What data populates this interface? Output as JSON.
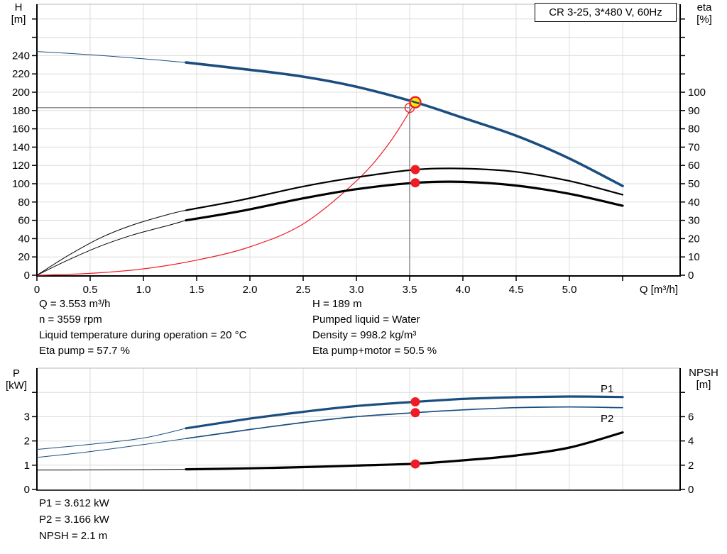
{
  "title_box": "CR 3-25, 3*480 V, 60Hz",
  "axis_labels": {
    "h": "H",
    "h_unit": "[m]",
    "eta": "eta",
    "eta_unit": "[%]",
    "p": "P",
    "p_unit": "[kW]",
    "npsh": "NPSH",
    "npsh_unit": "[m]",
    "q": "Q [m³/h]"
  },
  "annotations": {
    "left": [
      "Q = 3.553 m³/h",
      "n = 3559 rpm",
      "Liquid temperature during operation = 20 °C",
      "Eta pump = 57.7 %"
    ],
    "right": [
      "H = 189 m",
      "Pumped liquid = Water",
      "Density = 998.2 kg/m³",
      "Eta pump+motor = 50.5 %"
    ],
    "bottom": [
      "P1 = 3.612 kW",
      "P2 = 3.166 kW",
      "NPSH = 2.1 m"
    ]
  },
  "colors": {
    "curve_blue": "#1b4e7f",
    "label_blue": "#2a63ad",
    "red": "#ee1c25",
    "yellow": "#ffe600",
    "black": "#000000",
    "grid": "#dcdcdc",
    "border_gray": "#b9b9b9",
    "crosshair": "#555555"
  },
  "chart_data": [
    {
      "type": "line",
      "id": "hq-chart",
      "x_axis": {
        "label": "Q [m³/h]",
        "tick_values": [
          0,
          0.5,
          1,
          1.5,
          2,
          2.5,
          3,
          3.5,
          4,
          4.5,
          5,
          5.5
        ],
        "tick_labels": [
          "0",
          "0.5",
          "1.0",
          "1.5",
          "2.0",
          "2.5",
          "3.0",
          "3.5",
          "4.0",
          "4.5",
          "5.0",
          ""
        ]
      },
      "left_axis": {
        "label": "H [m]",
        "tick_values": [
          0,
          20,
          40,
          60,
          80,
          100,
          120,
          140,
          160,
          180,
          200,
          220,
          240,
          260,
          280
        ],
        "tick_labels": [
          "0",
          "20",
          "40",
          "60",
          "80",
          "100",
          "120",
          "140",
          "160",
          "180",
          "200",
          "220",
          "240",
          "",
          ""
        ]
      },
      "right_axis": {
        "label": "eta [%]",
        "tick_values": [
          0,
          10,
          20,
          30,
          40,
          50,
          60,
          70,
          80,
          90,
          100,
          110,
          120,
          130,
          140
        ],
        "tick_labels": [
          "0",
          "10",
          "20",
          "30",
          "40",
          "50",
          "60",
          "70",
          "80",
          "90",
          "100",
          "",
          "",
          "",
          ""
        ]
      },
      "series": [
        {
          "name": "system-curve",
          "axis": "H",
          "color_key": "red",
          "split_q": null,
          "widths": [
            1.2,
            1.2
          ],
          "points": [
            [
              0,
              0
            ],
            [
              0.5,
              2
            ],
            [
              1.0,
              7
            ],
            [
              1.5,
              16.5
            ],
            [
              2.0,
              31
            ],
            [
              2.5,
              56
            ],
            [
              3.0,
              103
            ],
            [
              3.3,
              143
            ],
            [
              3.553,
              189
            ]
          ]
        },
        {
          "name": "eta-pump",
          "axis": "eta",
          "color_key": "black",
          "split_q": 1.4,
          "widths": [
            1,
            2.2
          ],
          "points": [
            [
              0,
              0
            ],
            [
              0.3,
              11
            ],
            [
              0.6,
              20.5
            ],
            [
              0.9,
              27.5
            ],
            [
              1.25,
              33.5
            ],
            [
              1.4,
              35.5
            ],
            [
              1.91,
              41
            ],
            [
              2.5,
              48.5
            ],
            [
              3.0,
              53.5
            ],
            [
              3.553,
              57.7
            ],
            [
              4.0,
              58.3
            ],
            [
              4.5,
              56.5
            ],
            [
              5.0,
              51.5
            ],
            [
              5.5,
              44
            ]
          ]
        },
        {
          "name": "eta-pump-motor",
          "axis": "eta",
          "color_key": "black",
          "split_q": 1.4,
          "widths": [
            1,
            3.2
          ],
          "points": [
            [
              0,
              0
            ],
            [
              0.3,
              8.5
            ],
            [
              0.6,
              16
            ],
            [
              0.9,
              22
            ],
            [
              1.25,
              27.5
            ],
            [
              1.4,
              30
            ],
            [
              1.91,
              35
            ],
            [
              2.5,
              42
            ],
            [
              3.0,
              47
            ],
            [
              3.553,
              50.5
            ],
            [
              4.0,
              51
            ],
            [
              4.5,
              49
            ],
            [
              5.0,
              44.5
            ],
            [
              5.5,
              38
            ]
          ]
        },
        {
          "name": "head-curve",
          "axis": "H",
          "color_key": "curve_blue",
          "split_q": 1.4,
          "widths": [
            1,
            3.6
          ],
          "points": [
            [
              0,
              244.5
            ],
            [
              0.5,
              241
            ],
            [
              1.0,
              236.5
            ],
            [
              1.4,
              232.5
            ],
            [
              2.0,
              224.5
            ],
            [
              2.5,
              217
            ],
            [
              3.0,
              206
            ],
            [
              3.553,
              189
            ],
            [
              4.0,
              172
            ],
            [
              4.5,
              152.5
            ],
            [
              5.0,
              127.5
            ],
            [
              5.5,
              97.5
            ]
          ]
        }
      ],
      "crosshair": {
        "q": 3.5,
        "axis": "H",
        "value": 183
      },
      "markers": [
        {
          "type": "open-circle",
          "q": 3.5,
          "axis": "H",
          "value": 183
        },
        {
          "type": "red-dot",
          "q": 3.553,
          "axis": "eta",
          "value": 57.7
        },
        {
          "type": "red-dot",
          "q": 3.553,
          "axis": "eta",
          "value": 50.5
        },
        {
          "type": "operating-point",
          "q": 3.553,
          "axis": "H",
          "value": 189
        }
      ]
    },
    {
      "type": "line",
      "id": "power-npsh-chart",
      "x_axis": {
        "label": "",
        "tick_values": [
          0,
          0.5,
          1,
          1.5,
          2,
          2.5,
          3,
          3.5,
          4,
          4.5,
          5,
          5.5
        ],
        "tick_labels": [
          "",
          "",
          "",
          "",
          "",
          "",
          "",
          "",
          "",
          "",
          "",
          ""
        ]
      },
      "left_axis": {
        "label": "P [kW]",
        "tick_values": [
          0,
          1,
          2,
          3,
          4
        ],
        "tick_labels": [
          "0",
          "1",
          "2",
          "3",
          ""
        ]
      },
      "right_axis": {
        "label": "NPSH [m]",
        "tick_values": [
          0,
          2,
          4,
          6,
          8
        ],
        "tick_labels": [
          "0",
          "2",
          "4",
          "6",
          ""
        ]
      },
      "series": [
        {
          "name": "npsh-curve",
          "axis": "NPSH",
          "color_key": "black",
          "split_q": 1.4,
          "widths": [
            1,
            3.2
          ],
          "label": "",
          "points": [
            [
              0,
              1.6
            ],
            [
              0.5,
              1.61
            ],
            [
              1.0,
              1.63
            ],
            [
              1.4,
              1.66
            ],
            [
              2.0,
              1.74
            ],
            [
              2.5,
              1.84
            ],
            [
              3.0,
              1.97
            ],
            [
              3.553,
              2.12
            ],
            [
              4.0,
              2.4
            ],
            [
              4.5,
              2.8
            ],
            [
              5.0,
              3.45
            ],
            [
              5.5,
              4.7
            ]
          ]
        },
        {
          "name": "p2-curve",
          "axis": "P",
          "color_key": "curve_blue",
          "split_q": 1.4,
          "widths": [
            1,
            1.7
          ],
          "label": "P2",
          "points": [
            [
              0,
              1.32
            ],
            [
              0.5,
              1.56
            ],
            [
              1.0,
              1.85
            ],
            [
              1.4,
              2.1
            ],
            [
              2.0,
              2.47
            ],
            [
              2.5,
              2.76
            ],
            [
              3.0,
              3.0
            ],
            [
              3.553,
              3.166
            ],
            [
              4.0,
              3.28
            ],
            [
              4.5,
              3.37
            ],
            [
              5.0,
              3.4
            ],
            [
              5.5,
              3.37
            ]
          ]
        },
        {
          "name": "p1-curve",
          "axis": "P",
          "color_key": "curve_blue",
          "split_q": 1.4,
          "widths": [
            1,
            3.2
          ],
          "label": "P1",
          "points": [
            [
              0,
              1.65
            ],
            [
              0.5,
              1.86
            ],
            [
              1.0,
              2.12
            ],
            [
              1.4,
              2.52
            ],
            [
              2.0,
              2.92
            ],
            [
              2.5,
              3.2
            ],
            [
              3.0,
              3.44
            ],
            [
              3.553,
              3.612
            ],
            [
              4.0,
              3.73
            ],
            [
              4.5,
              3.8
            ],
            [
              5.0,
              3.83
            ],
            [
              5.5,
              3.81
            ]
          ]
        }
      ],
      "markers": [
        {
          "type": "red-dot",
          "q": 3.553,
          "axis": "P",
          "value": 3.612
        },
        {
          "type": "red-dot",
          "q": 3.553,
          "axis": "P",
          "value": 3.166
        },
        {
          "type": "red-dot",
          "q": 3.553,
          "axis": "NPSH",
          "value": 2.1
        }
      ]
    }
  ],
  "series_labels": {
    "p1": "P1",
    "p2": "P2"
  }
}
